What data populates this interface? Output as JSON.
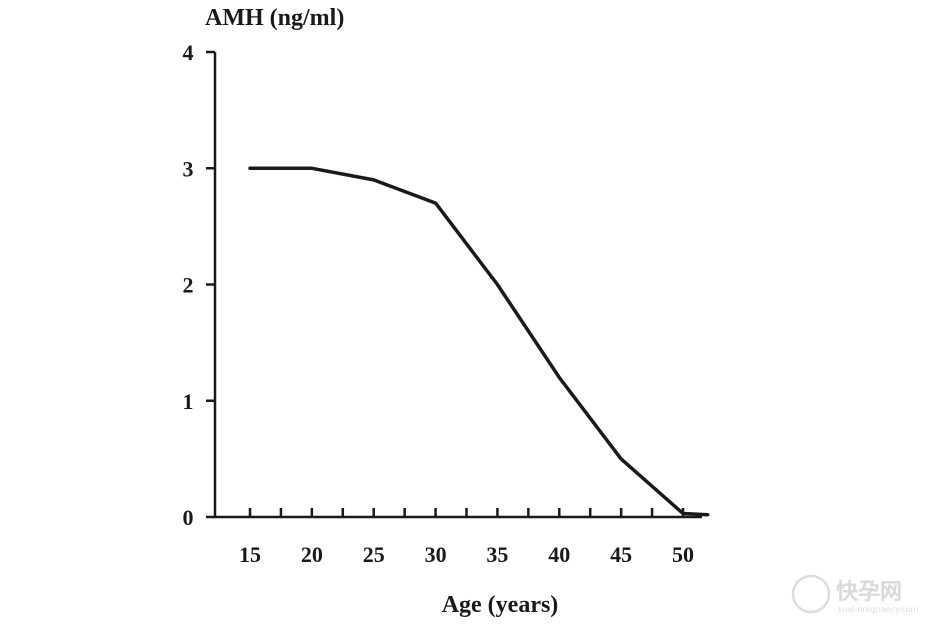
{
  "chart_data": {
    "type": "line",
    "title": "",
    "ylabel": "AMH (ng/ml)",
    "xlabel": "Age (years)",
    "x_ticks": [
      15,
      20,
      25,
      30,
      35,
      40,
      45,
      50
    ],
    "y_ticks": [
      0,
      1,
      2,
      3,
      4
    ],
    "xlim": [
      12.5,
      52
    ],
    "ylim": [
      0,
      4
    ],
    "grid": false,
    "series": [
      {
        "name": "AMH",
        "x": [
          15,
          20,
          25,
          30,
          35,
          40,
          45,
          50,
          52
        ],
        "y": [
          3.0,
          3.0,
          2.9,
          2.7,
          2.0,
          1.2,
          0.5,
          0.03,
          0.02
        ]
      }
    ]
  },
  "watermark": {
    "text": "快孕网",
    "subtext": "kuai-pregnancy.com"
  }
}
